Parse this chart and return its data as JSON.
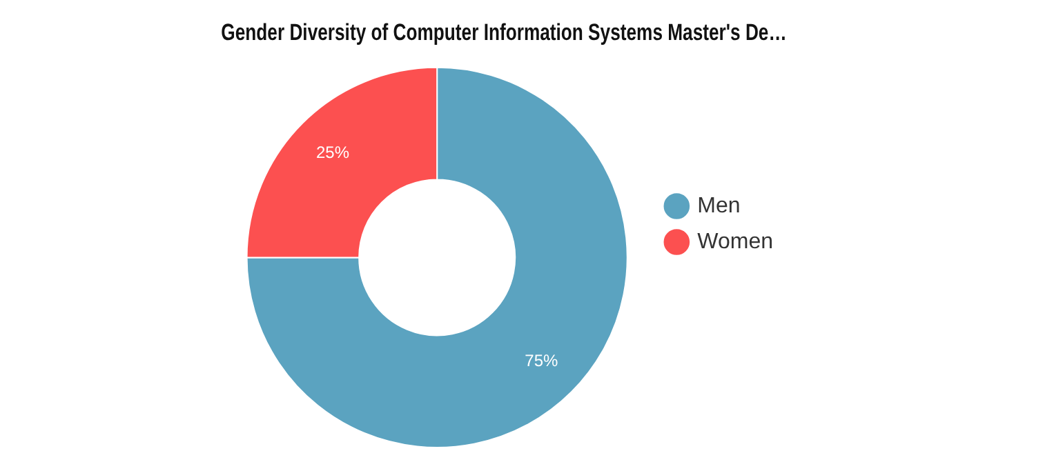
{
  "chart_data": {
    "type": "donut",
    "title": "Gender Diversity of Computer Information Systems Master's De…",
    "categories": [
      "Men",
      "Women"
    ],
    "values": [
      75,
      25
    ],
    "colors": [
      "#5ba3c0",
      "#fc5050"
    ],
    "value_labels": [
      "75%",
      "25%"
    ],
    "legend": "right"
  }
}
